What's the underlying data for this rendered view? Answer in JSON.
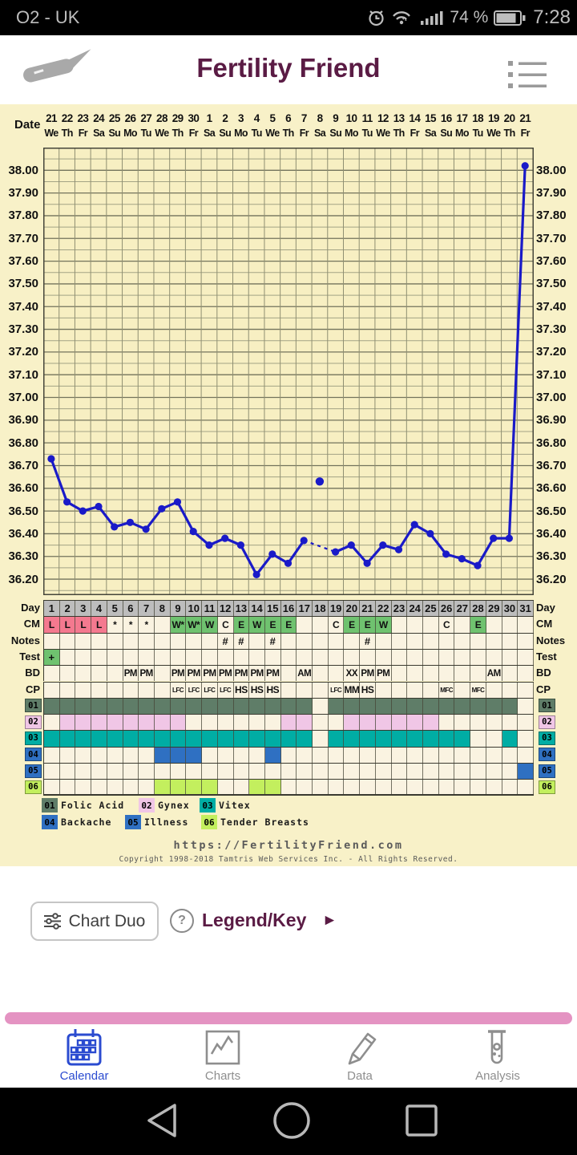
{
  "status_bar": {
    "carrier": "O2 - UK",
    "battery_percent": "74 %",
    "time": "7:28"
  },
  "header": {
    "title": "Fertility Friend"
  },
  "colors": {
    "accent_maroon": "#5a1b44",
    "chart_line_blue": "#1a1ac8",
    "panel_yellow": "#f8f1c8",
    "plot_yellow": "#f7efc2",
    "cell_cream": "#faf3e1",
    "day_header_gray": "#bdbdbd",
    "cm_pink": "#f4798f",
    "cm_green": "#6fc26f",
    "pink_strip": "#e493c2",
    "nav_active_blue": "#2b4bd0",
    "nav_gray": "#8a8a8a"
  },
  "chart": {
    "date_label": "Date",
    "dates": [
      "21",
      "22",
      "23",
      "24",
      "25",
      "26",
      "27",
      "28",
      "29",
      "30",
      "1",
      "2",
      "3",
      "4",
      "5",
      "6",
      "7",
      "8",
      "9",
      "10",
      "11",
      "12",
      "13",
      "14",
      "15",
      "16",
      "17",
      "18",
      "19",
      "20",
      "21"
    ],
    "weekdays": [
      "We",
      "Th",
      "Fr",
      "Sa",
      "Su",
      "Mo",
      "Tu",
      "We",
      "Th",
      "Fr",
      "Sa",
      "Su",
      "Mo",
      "Tu",
      "We",
      "Th",
      "Fr",
      "Sa",
      "Su",
      "Mo",
      "Tu",
      "We",
      "Th",
      "Fr",
      "Sa",
      "Su",
      "Mo",
      "Tu",
      "We",
      "Th",
      "Fr"
    ],
    "temp_axis_labels": [
      "38.00",
      "37.90",
      "37.80",
      "37.70",
      "37.60",
      "37.50",
      "37.40",
      "37.30",
      "37.20",
      "37.10",
      "37.00",
      "36.90",
      "36.80",
      "36.70",
      "36.60",
      "36.50",
      "36.40",
      "36.30",
      "36.20"
    ]
  },
  "chart_data": {
    "type": "line",
    "title": "Basal body temperature (Celsius) by cycle day",
    "x": [
      1,
      2,
      3,
      4,
      5,
      6,
      7,
      8,
      9,
      10,
      11,
      12,
      13,
      14,
      15,
      16,
      17,
      18,
      19,
      20,
      21,
      22,
      23,
      24,
      25,
      26,
      27,
      28,
      29,
      30,
      31
    ],
    "temps_c": [
      36.73,
      36.54,
      36.5,
      36.52,
      36.43,
      36.45,
      36.42,
      36.51,
      36.54,
      36.41,
      36.35,
      36.38,
      36.35,
      36.22,
      36.31,
      36.27,
      36.37,
      null,
      36.32,
      36.35,
      36.27,
      36.35,
      36.33,
      36.44,
      36.4,
      36.31,
      36.29,
      36.26,
      36.38,
      36.38,
      38.02
    ],
    "discarded_point": {
      "day": 18,
      "temp_c": 36.63
    },
    "dashed_gap_between_days": [
      17,
      19
    ],
    "ylim": [
      36.14,
      38.1
    ],
    "y_tick_step": 0.1,
    "grid": true
  },
  "table": {
    "row_labels": {
      "day": "Day",
      "cm": "CM",
      "notes": "Notes",
      "test": "Test",
      "bd": "BD",
      "cp": "CP"
    },
    "day_numbers": [
      "1",
      "2",
      "3",
      "4",
      "5",
      "6",
      "7",
      "8",
      "9",
      "10",
      "11",
      "12",
      "13",
      "14",
      "15",
      "16",
      "17",
      "18",
      "19",
      "20",
      "21",
      "22",
      "23",
      "24",
      "25",
      "26",
      "27",
      "28",
      "29",
      "30",
      "31"
    ],
    "cm_cells": [
      {
        "day": 1,
        "text": "L",
        "bg": "pink"
      },
      {
        "day": 2,
        "text": "L",
        "bg": "pink"
      },
      {
        "day": 3,
        "text": "L",
        "bg": "pink"
      },
      {
        "day": 4,
        "text": "L",
        "bg": "pink"
      },
      {
        "day": 5,
        "text": "*"
      },
      {
        "day": 6,
        "text": "*"
      },
      {
        "day": 7,
        "text": "*"
      },
      {
        "day": 9,
        "text": "W*",
        "bg": "green"
      },
      {
        "day": 10,
        "text": "W*",
        "bg": "green"
      },
      {
        "day": 11,
        "text": "W",
        "bg": "green"
      },
      {
        "day": 12,
        "text": "C"
      },
      {
        "day": 13,
        "text": "E",
        "bg": "green"
      },
      {
        "day": 14,
        "text": "W",
        "bg": "green"
      },
      {
        "day": 15,
        "text": "E",
        "bg": "green"
      },
      {
        "day": 16,
        "text": "E",
        "bg": "green"
      },
      {
        "day": 19,
        "text": "C"
      },
      {
        "day": 20,
        "text": "E",
        "bg": "green"
      },
      {
        "day": 21,
        "text": "E",
        "bg": "green"
      },
      {
        "day": 22,
        "text": "W",
        "bg": "green"
      },
      {
        "day": 26,
        "text": "C"
      },
      {
        "day": 28,
        "text": "E",
        "bg": "green"
      }
    ],
    "notes_cells": [
      {
        "day": 12,
        "text": "#"
      },
      {
        "day": 13,
        "text": "#"
      },
      {
        "day": 15,
        "text": "#"
      },
      {
        "day": 21,
        "text": "#"
      }
    ],
    "test_cells": [
      {
        "day": 1,
        "text": "+",
        "bg": "green"
      }
    ],
    "bd_cells": [
      {
        "day": 6,
        "text": "PM"
      },
      {
        "day": 7,
        "text": "PM"
      },
      {
        "day": 9,
        "text": "PM"
      },
      {
        "day": 10,
        "text": "PM"
      },
      {
        "day": 11,
        "text": "PM"
      },
      {
        "day": 12,
        "text": "PM"
      },
      {
        "day": 13,
        "text": "PM"
      },
      {
        "day": 14,
        "text": "PM"
      },
      {
        "day": 15,
        "text": "PM"
      },
      {
        "day": 17,
        "text": "AM"
      },
      {
        "day": 20,
        "text": "XX"
      },
      {
        "day": 21,
        "text": "PM"
      },
      {
        "day": 22,
        "text": "PM"
      },
      {
        "day": 29,
        "text": "AM"
      }
    ],
    "cp_cells": [
      {
        "day": 9,
        "text": "LFC"
      },
      {
        "day": 10,
        "text": "LFC"
      },
      {
        "day": 11,
        "text": "LFC"
      },
      {
        "day": 12,
        "text": "LFC"
      },
      {
        "day": 13,
        "text": "HS"
      },
      {
        "day": 14,
        "text": "HS"
      },
      {
        "day": 15,
        "text": "HS"
      },
      {
        "day": 19,
        "text": "LFC"
      },
      {
        "day": 20,
        "text": "MM"
      },
      {
        "day": 21,
        "text": "HS"
      },
      {
        "day": 26,
        "text": "MFC"
      },
      {
        "day": 28,
        "text": "MFC"
      }
    ],
    "med_rows": [
      {
        "id": "01",
        "name": "Folic Acid",
        "color": "#5f7d68",
        "days": [
          1,
          2,
          3,
          4,
          5,
          6,
          7,
          8,
          9,
          10,
          11,
          12,
          13,
          14,
          15,
          16,
          17,
          19,
          20,
          21,
          22,
          23,
          24,
          25,
          26,
          27,
          28,
          29,
          30
        ]
      },
      {
        "id": "02",
        "name": "Gynex",
        "color": "#f0c6e6",
        "days": [
          2,
          3,
          4,
          5,
          6,
          7,
          8,
          9,
          16,
          17,
          20,
          21,
          22,
          23,
          24,
          25
        ]
      },
      {
        "id": "03",
        "name": "Vitex",
        "color": "#00ada4",
        "days": [
          1,
          2,
          3,
          4,
          5,
          6,
          7,
          8,
          9,
          10,
          11,
          12,
          13,
          14,
          15,
          16,
          17,
          19,
          20,
          21,
          22,
          23,
          24,
          25,
          26,
          27,
          30
        ]
      },
      {
        "id": "04",
        "name": "Backache",
        "color": "#2f70c2",
        "days": [
          8,
          9,
          10,
          15
        ]
      },
      {
        "id": "05",
        "name": "Illness",
        "color": "#2f70c2",
        "days": [
          31
        ]
      },
      {
        "id": "06",
        "name": "Tender Breasts",
        "color": "#c3ef5e",
        "days": [
          8,
          9,
          10,
          11,
          14,
          15
        ]
      }
    ]
  },
  "footer": {
    "url": "https://FertilityFriend.com",
    "copyright": "Copyright 1998-2018 Tamtris Web Services Inc. - All Rights Reserved."
  },
  "actions": {
    "chart_duo_label": "Chart Duo",
    "help_glyph": "?",
    "legend_key_label": "Legend/Key",
    "legend_key_arrow": "►"
  },
  "bottom_nav": {
    "items": [
      {
        "label": "Calendar",
        "icon": "calendar",
        "active": true
      },
      {
        "label": "Charts",
        "icon": "line-chart",
        "active": false
      },
      {
        "label": "Data",
        "icon": "pencil",
        "active": false
      },
      {
        "label": "Analysis",
        "icon": "test-tube",
        "active": false
      }
    ]
  }
}
